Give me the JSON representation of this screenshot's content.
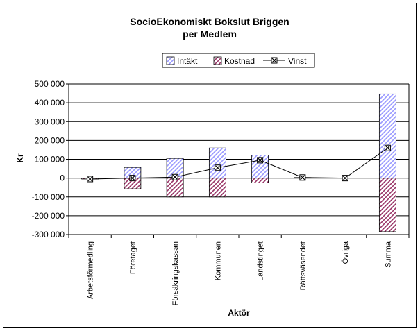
{
  "chart_data": {
    "type": "bar",
    "title_lines": [
      "SocioEkonomiskt Bokslut Briggen",
      "per Medlem"
    ],
    "xlabel": "Aktör",
    "ylabel": "Kr",
    "ylim": [
      -300000,
      500000
    ],
    "ytick_step": 100000,
    "ytick_labels": [
      "500 000",
      "400 000",
      "300 000",
      "200 000",
      "100 000",
      "0",
      "-100 000",
      "-200 000",
      "-300 000"
    ],
    "grid": true,
    "legend_position": "top-center",
    "categories": [
      "Arbetsförmedling",
      "Företaget",
      "Försäkringskassan",
      "Kommunen",
      "Landstinget",
      "Rättsväsendet",
      "Övriga",
      "Summa"
    ],
    "series": [
      {
        "name": "Intäkt",
        "kind": "bar",
        "values": [
          0,
          57000,
          105000,
          160000,
          122000,
          3000,
          0,
          447000
        ]
      },
      {
        "name": "Kostnad",
        "kind": "bar",
        "values": [
          -5000,
          -57000,
          -100000,
          -100000,
          -25000,
          0,
          0,
          -285000
        ]
      },
      {
        "name": "Vinst",
        "kind": "line",
        "values": [
          -5000,
          0,
          5000,
          55000,
          95000,
          3000,
          0,
          160000
        ]
      }
    ],
    "colors": {
      "intakt_stripe": "#9999ff",
      "kostnad_stripe": "#993366",
      "line": "#000000"
    }
  }
}
